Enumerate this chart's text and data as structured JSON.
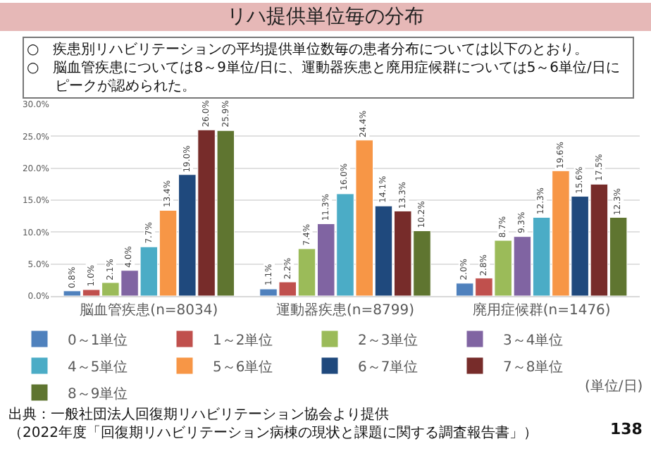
{
  "chart_data": {
    "type": "bar",
    "title": "リハ提供単位毎の分布",
    "categories": [
      "脳血管疾患(n=8034)",
      "運動器疾患(n=8799)",
      "廃用症候群(n=1476)"
    ],
    "series": [
      {
        "name": "0～1単位",
        "color": "#4f81bd",
        "values": [
          0.8,
          1.1,
          2.0
        ],
        "value_labels": [
          "0.8%",
          "1.1%",
          "2.0%"
        ]
      },
      {
        "name": "1～2単位",
        "color": "#c0504d",
        "values": [
          1.0,
          2.2,
          2.8
        ],
        "value_labels": [
          "1.0%",
          "2.2%",
          "2.8%"
        ]
      },
      {
        "name": "2～3単位",
        "color": "#9bbb59",
        "values": [
          2.1,
          7.4,
          8.7
        ],
        "value_labels": [
          "2.1%",
          "7.4%",
          "8.7%"
        ]
      },
      {
        "name": "3～4単位",
        "color": "#8064a2",
        "values": [
          4.0,
          11.3,
          9.3
        ],
        "value_labels": [
          "4.0%",
          "11.3%",
          "9.3%"
        ]
      },
      {
        "name": "4～5単位",
        "color": "#4bacc6",
        "values": [
          7.7,
          16.0,
          12.3
        ],
        "value_labels": [
          "7.7%",
          "16.0%",
          "12.3%"
        ]
      },
      {
        "name": "5～6単位",
        "color": "#f79646",
        "values": [
          13.4,
          24.4,
          19.6
        ],
        "value_labels": [
          "13.4%",
          "24.4%",
          "19.6%"
        ]
      },
      {
        "name": "6～7単位",
        "color": "#1f497d",
        "values": [
          19.0,
          14.1,
          15.6
        ],
        "value_labels": [
          "19.0%",
          "14.1%",
          "15.6%"
        ]
      },
      {
        "name": "7～8単位",
        "color": "#772c2a",
        "values": [
          26.0,
          13.3,
          17.5
        ],
        "value_labels": [
          "26.0%",
          "13.3%",
          "17.5%"
        ]
      },
      {
        "name": "8～9単位",
        "color": "#5f7530",
        "values": [
          25.9,
          10.2,
          12.3
        ],
        "value_labels": [
          "25.9%",
          "10.2%",
          "12.3%"
        ]
      }
    ],
    "ylim": [
      0,
      30
    ],
    "yticks": [
      {
        "value": 0,
        "label": "0.0%"
      },
      {
        "value": 5,
        "label": "5.0%"
      },
      {
        "value": 10,
        "label": "10.0%"
      },
      {
        "value": 15,
        "label": "15.0%"
      },
      {
        "value": 20,
        "label": "20.0%"
      },
      {
        "value": 25,
        "label": "25.0%"
      },
      {
        "value": 30,
        "label": "30.0%"
      }
    ],
    "grid": "y",
    "legend": "bottom",
    "annotations": [
      "○　疾患別リハビリテーションの平均提供単位数毎の患者分布については以下のとおり。",
      "○　脳血管疾患については8～9単位/日に、運動器疾患と廃用症候群については5～6単位/日にピークが認められた。",
      "(単位/日)",
      "出典：一般社団法人回復期リハビリテーション協会より提供",
      "（2022年度「回復期リハビリテーション病棟の現状と課題に関する調査報告書」）",
      "138"
    ]
  }
}
